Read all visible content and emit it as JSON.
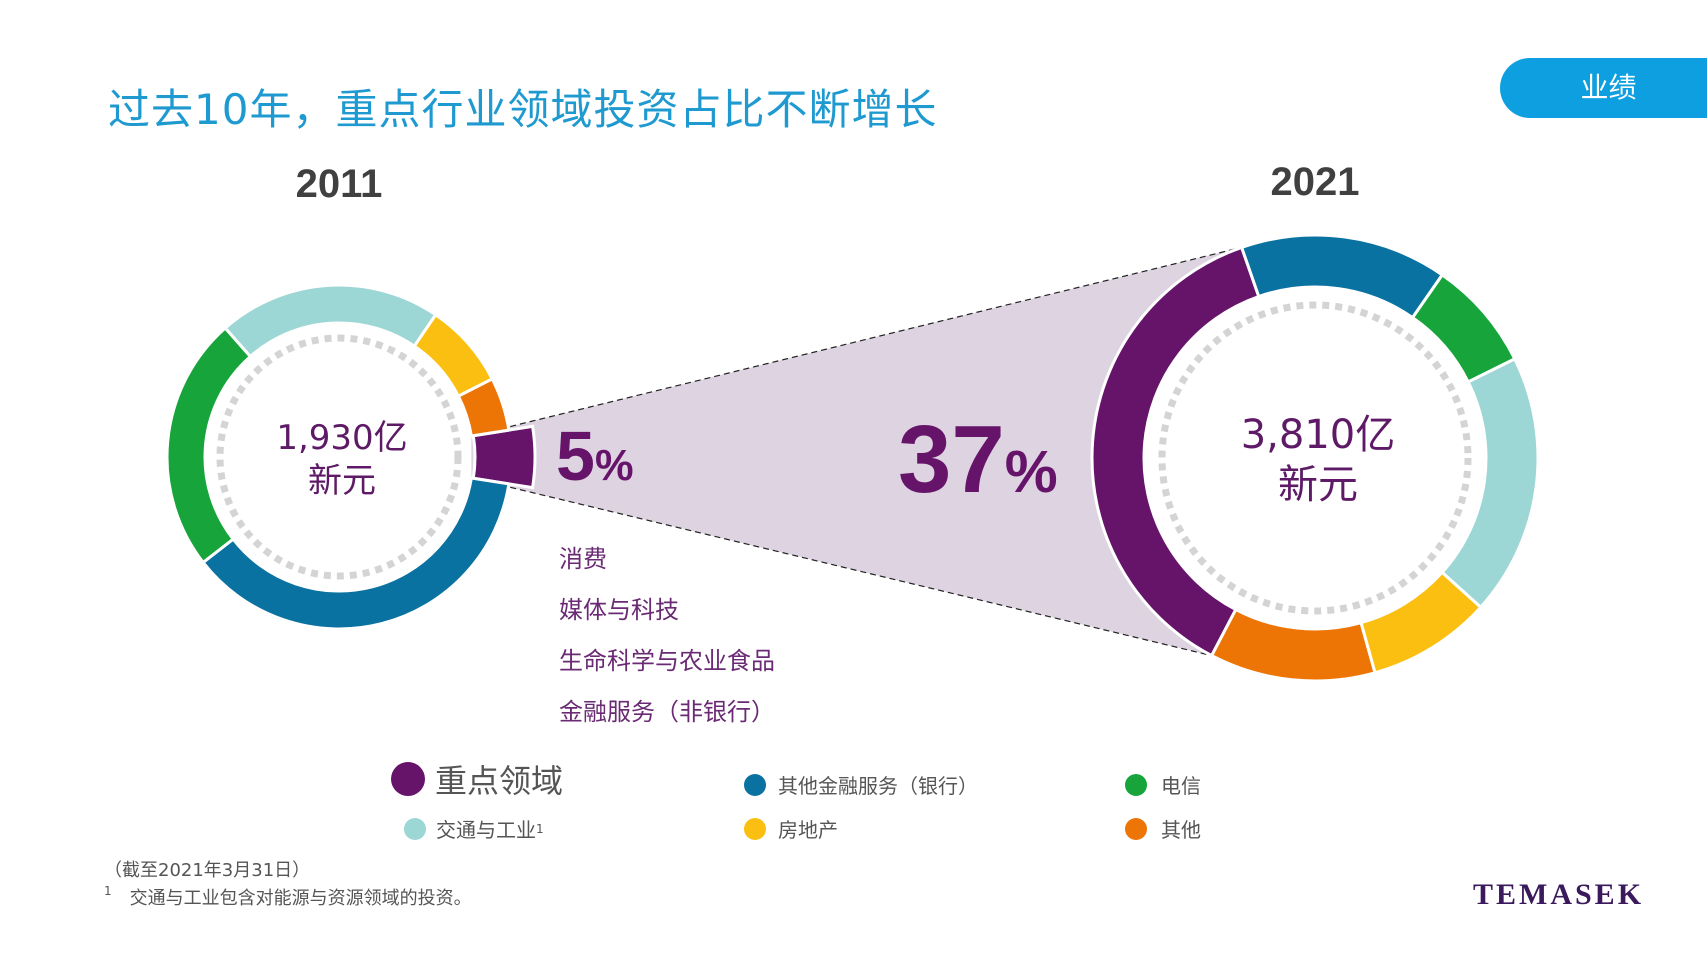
{
  "page": {
    "title": "过去10年，重点行业领域投资占比不断增长",
    "badge": "业绩",
    "logo": "TEMASEK"
  },
  "colors": {
    "focus": "#65146a",
    "other_financial": "#0a72a1",
    "telecom": "#17a53b",
    "transport_industrial": "#9cd6d5",
    "real_estate": "#fbbf12",
    "other": "#ec7506",
    "funnel": "#ddd3e1",
    "dots": "#d4d4d4"
  },
  "chart_data": [
    {
      "type": "pie",
      "title": "2011",
      "center_label": [
        "1,930亿",
        "新元"
      ],
      "total": "1,930亿新元",
      "highlight": {
        "label": "重点领域",
        "value": 5,
        "text": "5%"
      },
      "categories": [
        "重点领域",
        "其他金融服务（银行）",
        "电信",
        "交通与工业¹",
        "房地产",
        "其他"
      ],
      "values": [
        5,
        37,
        24,
        21,
        8,
        5
      ]
    },
    {
      "type": "pie",
      "title": "2021",
      "center_label": [
        "3,810亿",
        "新元"
      ],
      "total": "3,810亿新元",
      "highlight": {
        "label": "重点领域",
        "value": 37,
        "text": "37%"
      },
      "categories": [
        "重点领域",
        "其他金融服务（银行）",
        "电信",
        "交通与工业¹",
        "房地产",
        "其他"
      ],
      "values": [
        37,
        15,
        8,
        19,
        9,
        12
      ]
    }
  ],
  "pct_left": {
    "num": "5",
    "sign": "%"
  },
  "pct_right": {
    "num": "37",
    "sign": "%"
  },
  "focus_sectors": [
    "消费",
    "媒体与科技",
    "生命科学与农业食品",
    "金融服务（非银行）"
  ],
  "legend": [
    {
      "label": "重点领域",
      "key": "focus"
    },
    {
      "label": "其他金融服务（银行）",
      "key": "other_financial"
    },
    {
      "label": "电信",
      "key": "telecom"
    },
    {
      "label": "交通与工业",
      "sup": "1",
      "key": "transport_industrial"
    },
    {
      "label": "房地产",
      "key": "real_estate"
    },
    {
      "label": "其他",
      "key": "other"
    }
  ],
  "footnotes": {
    "asof": "（截至2021年3月31日）",
    "note_marker": "1",
    "note": "交通与工业包含对能源与资源领域的投资。"
  }
}
